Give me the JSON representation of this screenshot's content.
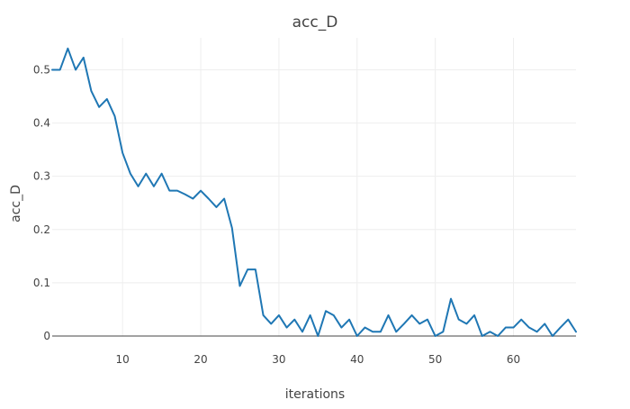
{
  "chart_data": {
    "type": "line",
    "title": "acc_D",
    "xlabel": "iterations",
    "ylabel": "acc_D",
    "xlim": [
      1,
      68
    ],
    "ylim": [
      0,
      0.56
    ],
    "xticks": [
      10,
      20,
      30,
      40,
      50,
      60
    ],
    "yticks": [
      0,
      0.1,
      0.2,
      0.3,
      0.4,
      0.5
    ],
    "ytick_labels": [
      "0",
      "0.1",
      "0.2",
      "0.3",
      "0.4",
      "0.5"
    ],
    "grid": true,
    "series": [
      {
        "color": "#1f77b4",
        "x": [
          1,
          2,
          3,
          4,
          5,
          6,
          7,
          8,
          9,
          10,
          11,
          12,
          13,
          14,
          15,
          16,
          17,
          18,
          19,
          20,
          21,
          22,
          23,
          24,
          25,
          26,
          27,
          28,
          29,
          30,
          31,
          32,
          33,
          34,
          35,
          36,
          37,
          38,
          39,
          40,
          41,
          42,
          43,
          44,
          45,
          46,
          47,
          48,
          49,
          50,
          51,
          52,
          53,
          54,
          55,
          56,
          57,
          58,
          59,
          60,
          61,
          62,
          63,
          64,
          65,
          66,
          67,
          68
        ],
        "values": [
          0.5,
          0.5,
          0.54,
          0.5,
          0.523,
          0.46,
          0.43,
          0.445,
          0.413,
          0.344,
          0.305,
          0.281,
          0.305,
          0.281,
          0.305,
          0.273,
          0.273,
          0.266,
          0.258,
          0.273,
          0.258,
          0.242,
          0.258,
          0.203,
          0.094,
          0.125,
          0.125,
          0.039,
          0.023,
          0.039,
          0.016,
          0.031,
          0.008,
          0.039,
          0.0,
          0.047,
          0.039,
          0.016,
          0.031,
          0.0,
          0.016,
          0.008,
          0.008,
          0.039,
          0.008,
          0.023,
          0.039,
          0.023,
          0.031,
          0.0,
          0.008,
          0.07,
          0.031,
          0.023,
          0.039,
          0.0,
          0.008,
          0.0,
          0.016,
          0.016,
          0.031,
          0.016,
          0.008,
          0.023,
          0.0,
          0.016,
          0.031,
          0.008
        ]
      }
    ]
  }
}
